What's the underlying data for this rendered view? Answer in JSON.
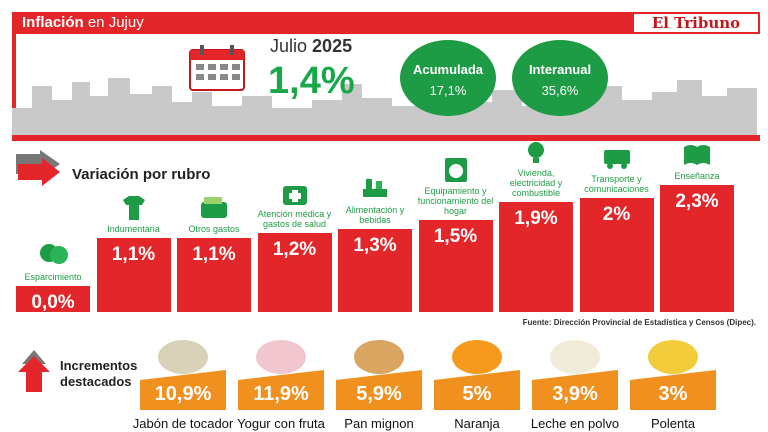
{
  "header": {
    "title_bold": "Inflación",
    "title_rest": "en Jujuy",
    "logo": "El Tribuno",
    "month_label": "Julio",
    "year": "2025",
    "monthly_value": "1,4%",
    "accumulated_label": "Acumulada",
    "accumulated_value": "17,1%",
    "interannual_label": "Interanual",
    "interannual_value": "35,6%",
    "accent_red": "#e3262a",
    "accent_green": "#1e9c45"
  },
  "section_rubro": {
    "title": "Variación por rubro"
  },
  "section_destacados": {
    "title_line1": "Incrementos",
    "title_line2": "destacados"
  },
  "source": "Fuente: Dirección Provincial de Estadística y Censos (Dipec).",
  "chart_data": [
    {
      "type": "bar",
      "categories": [
        "Esparcimiento",
        "Indumentaria",
        "Otros gastos",
        "Atención médica y gastos de salud",
        "Alimentación y bebidas",
        "Equipamiento y funcionamiento del hogar",
        "Vivienda, electricidad y combustible",
        "Transporte y comunicaciones",
        "Enseñanza"
      ],
      "values": [
        0.0,
        1.1,
        1.1,
        1.2,
        1.3,
        1.5,
        1.9,
        2.0,
        2.3
      ],
      "value_labels": [
        "0,0%",
        "1,1%",
        "1,1%",
        "1,2%",
        "1,3%",
        "1,5%",
        "1,9%",
        "2%",
        "2,3%"
      ],
      "icons": [
        "theater-masks-icon",
        "tshirt-icon",
        "wallet-icon",
        "first-aid-kit-icon",
        "food-drink-icon",
        "washing-machine-icon",
        "lightbulb-icon",
        "bus-icon",
        "book-icon"
      ],
      "bar_color": "#e3262a"
    },
    {
      "type": "bar",
      "categories": [
        "Jabón de tocador",
        "Yogur con fruta",
        "Pan mignon",
        "Naranja",
        "Leche en polvo",
        "Polenta"
      ],
      "values": [
        10.9,
        11.9,
        5.9,
        5,
        3.9,
        3
      ],
      "value_labels": [
        "10,9%",
        "11,9%",
        "5,9%",
        "5%",
        "3,9%",
        "3%"
      ],
      "bar_color": "#f0901f"
    }
  ]
}
